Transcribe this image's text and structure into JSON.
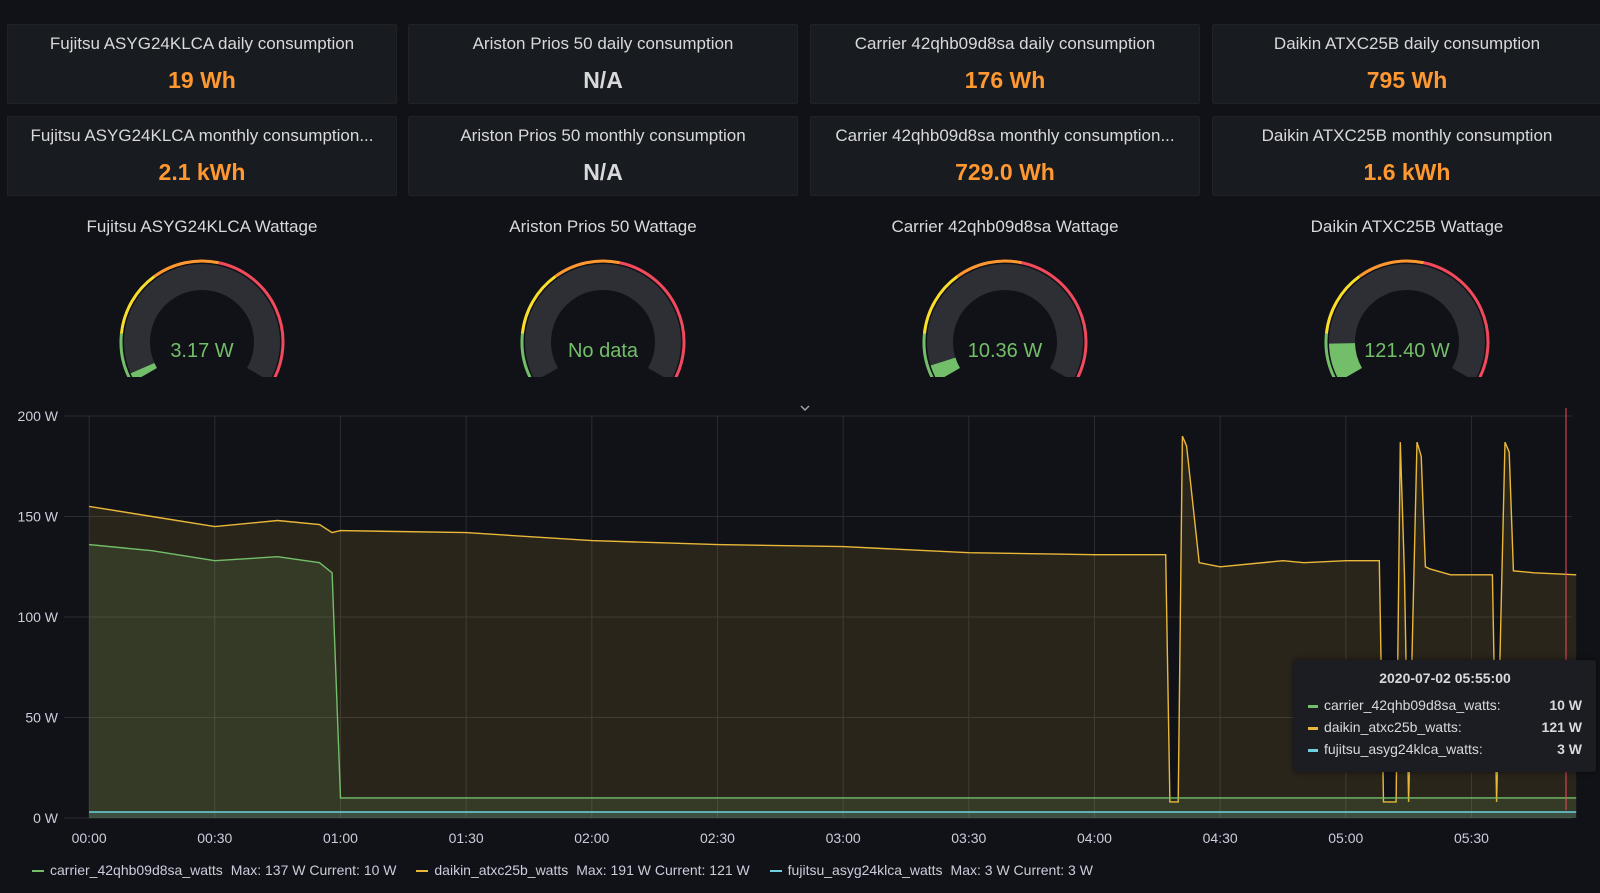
{
  "stats": [
    {
      "title": "Fujitsu ASYG24KLCA daily consumption",
      "value": "19 Wh"
    },
    {
      "title": "Ariston Prios 50 daily consumption",
      "value": "N/A"
    },
    {
      "title": "Carrier 42qhb09d8sa daily consumption",
      "value": "176 Wh"
    },
    {
      "title": "Daikin ATXC25B daily consumption",
      "value": "795 Wh"
    },
    {
      "title": "Fujitsu ASYG24KLCA monthly consumption...",
      "value": "2.1 kWh"
    },
    {
      "title": "Ariston Prios 50 monthly consumption",
      "value": "N/A"
    },
    {
      "title": "Carrier 42qhb09d8sa monthly consumption...",
      "value": "729.0 Wh"
    },
    {
      "title": "Daikin ATXC25B monthly consumption",
      "value": "1.6 kWh"
    }
  ],
  "gauges": [
    {
      "title": "Fujitsu ASYG24KLCA Wattage",
      "value": "3.17 W",
      "level": 0.026
    },
    {
      "title": "Ariston Prios 50 Wattage",
      "value": "No data",
      "level": 0
    },
    {
      "title": "Carrier 42qhb09d8sa Wattage",
      "value": "10.36 W",
      "level": 0.052
    },
    {
      "title": "Daikin ATXC25B Wattage",
      "value": "121.40 W",
      "level": 0.12
    }
  ],
  "colors": {
    "green": "#73bf69",
    "yellow": "#fade2a",
    "orange": "#ff9830",
    "red": "#f2495c",
    "series_carrier": "#73bf69",
    "series_daikin": "#eab839",
    "series_fujitsu": "#6ed0e0"
  },
  "tooltip": {
    "time": "2020-07-02 05:55:00",
    "rows": [
      {
        "name": "carrier_42qhb09d8sa_watts:",
        "value": "10 W"
      },
      {
        "name": "daikin_atxc25b_watts:",
        "value": "121 W"
      },
      {
        "name": "fujitsu_asyg24klca_watts:",
        "value": "3 W"
      }
    ]
  },
  "legend": [
    {
      "name": "carrier_42qhb09d8sa_watts",
      "meta": "Max: 137 W  Current: 10 W"
    },
    {
      "name": "daikin_atxc25b_watts",
      "meta": "Max: 191 W  Current: 121 W"
    },
    {
      "name": "fujitsu_asyg24klca_watts",
      "meta": "Max: 3 W  Current: 3 W"
    }
  ],
  "chart_data": {
    "type": "line",
    "title": "",
    "xlabel": "",
    "ylabel": "",
    "ylim": [
      0,
      200
    ],
    "yticks": [
      "0 W",
      "50 W",
      "100 W",
      "150 W",
      "200 W"
    ],
    "xticks": [
      "00:00",
      "00:30",
      "01:00",
      "01:30",
      "02:00",
      "02:30",
      "03:00",
      "03:30",
      "04:00",
      "04:30",
      "05:00",
      "05:30"
    ],
    "grid": true,
    "legend_position": "bottom",
    "x": [
      "00:00",
      "00:15",
      "00:30",
      "00:45",
      "00:55",
      "00:58",
      "01:00",
      "01:30",
      "02:00",
      "02:30",
      "03:00",
      "03:30",
      "04:00",
      "04:17",
      "04:18",
      "04:20",
      "04:21",
      "04:22",
      "04:25",
      "04:30",
      "04:45",
      "04:50",
      "05:00",
      "05:08",
      "05:09",
      "05:12",
      "05:13",
      "05:14",
      "05:15",
      "05:17",
      "05:18",
      "05:19",
      "05:20",
      "05:25",
      "05:35",
      "05:36",
      "05:38",
      "05:39",
      "05:40",
      "05:45",
      "05:55"
    ],
    "series": [
      {
        "name": "carrier_42qhb09d8sa_watts",
        "values": [
          136,
          133,
          128,
          130,
          127,
          122,
          10,
          10,
          10,
          10,
          10,
          10,
          10,
          10,
          10,
          10,
          10,
          10,
          10,
          10,
          10,
          10,
          10,
          10,
          10,
          10,
          10,
          10,
          10,
          10,
          10,
          10,
          10,
          10,
          10,
          10,
          10,
          10,
          10,
          10,
          10
        ]
      },
      {
        "name": "daikin_atxc25b_watts",
        "values": [
          155,
          150,
          145,
          148,
          146,
          142,
          143,
          142,
          138,
          136,
          135,
          132,
          131,
          131,
          8,
          8,
          190,
          185,
          127,
          125,
          128,
          127,
          128,
          128,
          8,
          8,
          187,
          122,
          8,
          187,
          180,
          125,
          124,
          121,
          121,
          8,
          187,
          182,
          123,
          122,
          121
        ]
      },
      {
        "name": "fujitsu_asyg24klca_watts",
        "values": [
          3,
          3,
          3,
          3,
          3,
          3,
          3,
          3,
          3,
          3,
          3,
          3,
          3,
          3,
          3,
          3,
          3,
          3,
          3,
          3,
          3,
          3,
          3,
          3,
          3,
          3,
          3,
          3,
          3,
          3,
          3,
          3,
          3,
          3,
          3,
          3,
          3,
          3,
          3,
          3,
          3
        ]
      }
    ]
  }
}
